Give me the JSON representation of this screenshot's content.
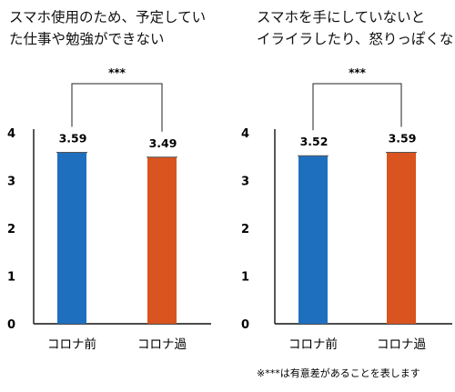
{
  "chart_data": [
    {
      "type": "bar",
      "title_lines": [
        "スマホ使用のため、予定してい",
        "た仕事や勉強ができない"
      ],
      "categories": [
        "コロナ前",
        "コロナ過"
      ],
      "values": [
        3.59,
        3.49
      ],
      "value_labels": [
        "3.59",
        "3.49"
      ],
      "colors": [
        "#1f6fbf",
        "#d9541e"
      ],
      "ylim": [
        0,
        4
      ],
      "yticks": [
        "0",
        "1",
        "2",
        "3",
        "4"
      ],
      "significance": "***",
      "grid": false
    },
    {
      "type": "bar",
      "title_lines": [
        "スマホを手にしていないと",
        "イライラしたり、怒りっぽくなる"
      ],
      "categories": [
        "コロナ前",
        "コロナ過"
      ],
      "values": [
        3.52,
        3.59
      ],
      "value_labels": [
        "3.52",
        "3.59"
      ],
      "colors": [
        "#1f6fbf",
        "#d9541e"
      ],
      "ylim": [
        0,
        4
      ],
      "yticks": [
        "0",
        "1",
        "2",
        "3",
        "4"
      ],
      "significance": "***",
      "grid": false
    }
  ],
  "footnote": "※***は有意差があることを表します"
}
